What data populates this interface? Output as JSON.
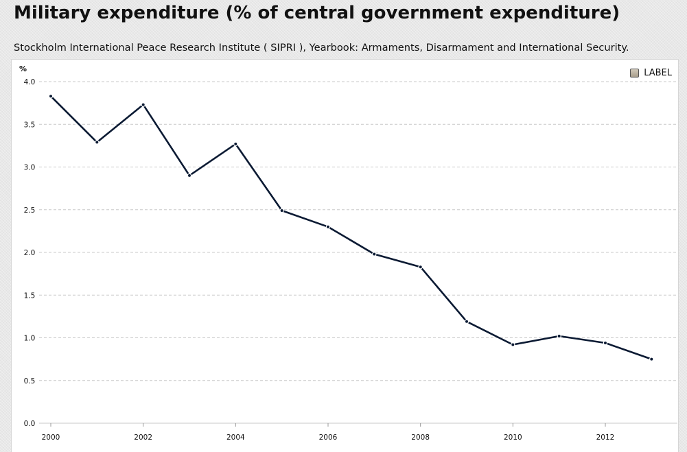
{
  "header": {
    "title": "Military expenditure (% of central government expenditure)",
    "source": "Stockholm International Peace Research Institute ( SIPRI ), Yearbook: Armaments, Disarmament and International Security."
  },
  "colors": {
    "line": "#0b1a33",
    "grid": "#c8c8c8",
    "legend_swatch": "#bfb6a4"
  },
  "chart_data": {
    "type": "line",
    "ylabel": "%",
    "ylim": [
      0,
      4
    ],
    "y_ticks": [
      "0.0",
      "0.5",
      "1.0",
      "1.5",
      "2.0",
      "2.5",
      "3.0",
      "3.5",
      "4.0"
    ],
    "x_ticks": [
      "2000",
      "2002",
      "2004",
      "2006",
      "2008",
      "2010",
      "2012"
    ],
    "xlim": [
      2000,
      2014
    ],
    "grid": true,
    "legend_position": "top-right",
    "series": [
      {
        "name": "LABEL",
        "x": [
          2000,
          2001,
          2002,
          2003,
          2004,
          2005,
          2006,
          2007,
          2008,
          2009,
          2010,
          2011,
          2012,
          2013
        ],
        "values": [
          3.83,
          3.29,
          3.73,
          2.9,
          3.27,
          2.49,
          2.3,
          1.98,
          1.83,
          1.19,
          0.92,
          1.02,
          0.94,
          0.75
        ]
      }
    ]
  }
}
